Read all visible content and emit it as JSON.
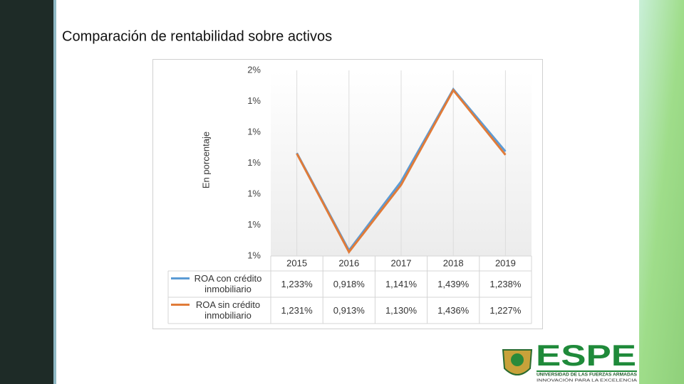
{
  "chart_data": {
    "type": "line",
    "title": "Comparación de rentabilidad sobre activos",
    "y_label": "En porcentaje",
    "categories": [
      "2015",
      "2016",
      "2017",
      "2018",
      "2019"
    ],
    "series": [
      {
        "name": "ROA con crédito inmobiliario",
        "color": "#5b9bd5",
        "values": [
          1.233,
          0.918,
          1.141,
          1.439,
          1.238
        ],
        "value_labels": [
          "1,233%",
          "0,918%",
          "1,141%",
          "1,439%",
          "1,238%"
        ]
      },
      {
        "name": "ROA sin crédito inmobiliario",
        "color": "#e07b39",
        "values": [
          1.231,
          0.913,
          1.13,
          1.436,
          1.227
        ],
        "value_labels": [
          "1,231%",
          "0,913%",
          "1,130%",
          "1,436%",
          "1,227%"
        ]
      }
    ],
    "ylim": [
      0.9,
      1.5
    ],
    "yticks": [
      {
        "value": 0.9,
        "label": "1%"
      },
      {
        "value": 1.0,
        "label": "1%"
      },
      {
        "value": 1.1,
        "label": "1%"
      },
      {
        "value": 1.2,
        "label": "1%"
      },
      {
        "value": 1.3,
        "label": "1%"
      },
      {
        "value": 1.4,
        "label": "1%"
      },
      {
        "value": 1.5,
        "label": "2%"
      }
    ],
    "grid": true
  },
  "logo": {
    "name": "ESPE",
    "line1": "UNIVERSIDAD DE LAS FUERZAS ARMADAS",
    "line2": "INNOVACIÓN PARA LA EXCELENCIA"
  }
}
